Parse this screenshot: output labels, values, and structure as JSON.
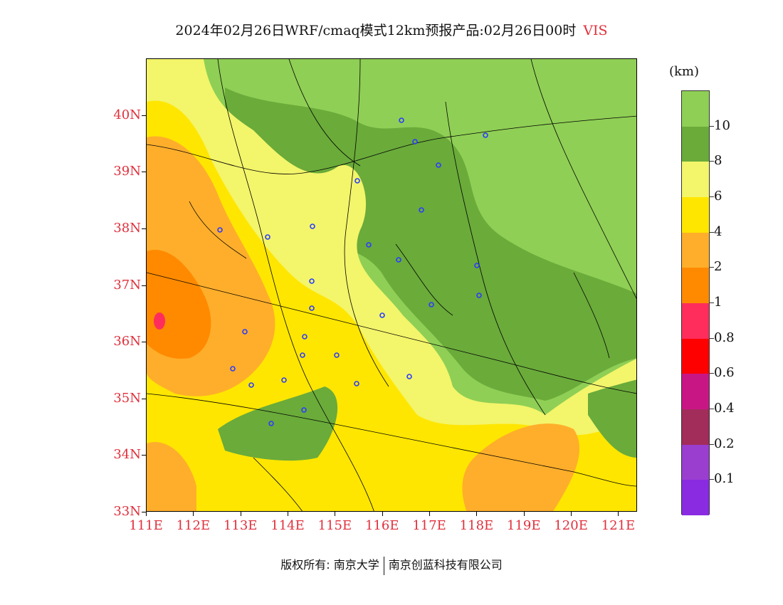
{
  "title": {
    "main": "2024年02月26日WRF/cmaq模式12km预报产品:02月26日00时",
    "variable": "VIS"
  },
  "map": {
    "lat_labels": [
      "40N",
      "39N",
      "38N",
      "37N",
      "36N",
      "35N",
      "34N",
      "33N"
    ],
    "lon_labels": [
      "111E",
      "112E",
      "113E",
      "114E",
      "115E",
      "116E",
      "117E",
      "118E",
      "119E",
      "120E",
      "121E"
    ],
    "lat_values": [
      40,
      39,
      38,
      37,
      36,
      35,
      34,
      33
    ],
    "lon_values": [
      111,
      112,
      113,
      114,
      115,
      116,
      117,
      118,
      119,
      120,
      121
    ],
    "lat_range": [
      33,
      41
    ],
    "lon_range": [
      111,
      121.4
    ]
  },
  "legend": {
    "unit": "(km)",
    "bins": [
      {
        "label": "10",
        "color": "#8fcf55"
      },
      {
        "label": "8",
        "color": "#6aab3a"
      },
      {
        "label": "6",
        "color": "#f3f56a"
      },
      {
        "label": "4",
        "color": "#ffe600"
      },
      {
        "label": "2",
        "color": "#ffae2b"
      },
      {
        "label": "1",
        "color": "#ff8a00"
      },
      {
        "label": "0.8",
        "color": "#ff2d5c"
      },
      {
        "label": "0.6",
        "color": "#ff0000"
      },
      {
        "label": "0.4",
        "color": "#c81784"
      },
      {
        "label": "0.2",
        "color": "#a22c5a"
      },
      {
        "label": "0.1",
        "color": "#9a3ed0"
      },
      {
        "label": "",
        "color": "#8a2be2"
      }
    ]
  },
  "footer": {
    "left": "版权所有: 南京大学",
    "right": "南京创蓝科技有限公司"
  }
}
